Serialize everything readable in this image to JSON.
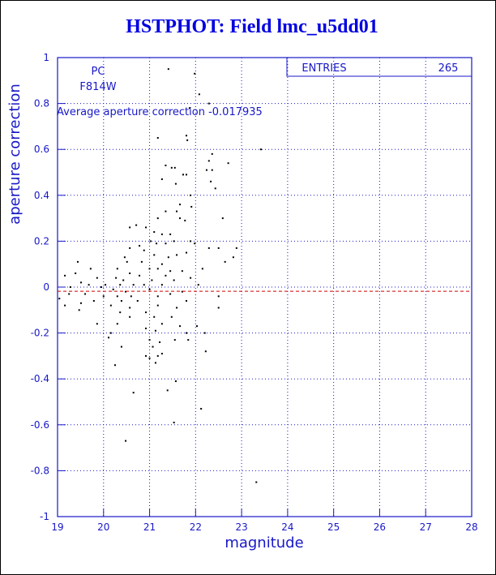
{
  "chart_data": {
    "type": "scatter",
    "title": "HSTPHOT: Field lmc_u5dd01",
    "xlabel": "magnitude",
    "ylabel": "aperture correction",
    "annotations": [
      "PC",
      "F814W"
    ],
    "average_label": "Average aperture correction",
    "average": -0.017935,
    "average_color": "#d00000",
    "stats": {
      "label": "ENTRIES",
      "value": 265
    },
    "xlim": [
      19,
      28
    ],
    "ylim": [
      -1,
      1
    ],
    "xticks": [
      19,
      20,
      21,
      22,
      23,
      24,
      25,
      26,
      27,
      28
    ],
    "yticks": [
      -1,
      -0.8,
      -0.6,
      -0.4,
      -0.2,
      0,
      0.2,
      0.4,
      0.6,
      0.8,
      1
    ],
    "grid": true,
    "axis_color": "#1818c8",
    "series": [
      {
        "color": "#000000",
        "x": [
          21.41,
          21.98,
          22.08,
          22.29,
          21.87,
          23.42,
          21.18,
          21.8,
          21.82,
          22.36,
          22.29,
          22.71,
          21.35,
          21.48,
          21.55,
          22.24,
          22.36,
          21.73,
          21.8,
          21.27,
          21.57,
          22.33,
          22.43,
          21.89,
          21.66,
          21.91,
          21.35,
          21.59,
          22.59,
          21.18,
          21.66,
          20.71,
          20.92,
          20.57,
          21.77,
          21.1,
          21.27,
          21.45,
          21.89,
          21.02,
          21.15,
          21.35,
          21.53,
          21.98,
          20.78,
          20.57,
          20.88,
          22.29,
          22.5,
          22.89,
          21.1,
          21.41,
          21.59,
          21.8,
          20.46,
          20.51,
          20.83,
          21.27,
          22.82,
          22.64,
          19.44,
          19.72,
          20.3,
          21.0,
          21.18,
          21.45,
          21.71,
          22.15,
          20.57,
          20.78,
          21.35,
          19.16,
          19.39,
          19.86,
          20.27,
          20.43,
          21.05,
          21.53,
          21.89,
          19.51,
          19.68,
          20.04,
          20.36,
          20.65,
          20.88,
          21.27,
          22.06,
          19.28,
          19.95,
          20.21,
          20.48,
          21.0,
          21.71,
          19.25,
          19.6,
          20.0,
          20.3,
          20.6,
          21.18,
          21.45,
          19.04,
          19.79,
          20.39,
          20.74,
          21.8,
          22.5,
          19.16,
          19.51,
          20.16,
          20.57,
          21.18,
          19.47,
          20.36,
          20.92,
          21.59,
          22.5,
          20.57,
          21.1,
          21.48,
          20.3,
          19.86,
          21.27,
          21.66,
          22.03,
          20.92,
          20.16,
          21.13,
          21.8,
          22.2,
          20.11,
          21.55,
          21.0,
          21.22,
          20.39,
          21.07,
          21.84,
          20.92,
          21.27,
          21.0,
          21.18,
          22.22,
          20.25,
          21.13,
          21.57,
          20.65,
          21.39,
          22.12,
          21.53,
          20.48,
          23.32
        ],
        "values": [
          0.95,
          0.93,
          0.84,
          0.8,
          0.78,
          0.6,
          0.65,
          0.66,
          0.64,
          0.58,
          0.55,
          0.54,
          0.53,
          0.52,
          0.52,
          0.51,
          0.51,
          0.49,
          0.49,
          0.47,
          0.45,
          0.46,
          0.43,
          0.4,
          0.36,
          0.35,
          0.33,
          0.33,
          0.3,
          0.3,
          0.3,
          0.27,
          0.26,
          0.26,
          0.29,
          0.24,
          0.23,
          0.23,
          0.2,
          0.2,
          0.19,
          0.19,
          0.2,
          0.19,
          0.18,
          0.17,
          0.16,
          0.17,
          0.17,
          0.17,
          0.14,
          0.13,
          0.14,
          0.15,
          0.13,
          0.11,
          0.11,
          0.1,
          0.13,
          0.11,
          0.11,
          0.08,
          0.08,
          0.08,
          0.08,
          0.07,
          0.07,
          0.08,
          0.06,
          0.05,
          0.05,
          0.05,
          0.06,
          0.04,
          0.04,
          0.03,
          0.03,
          0.03,
          0.04,
          0.02,
          0.01,
          0.01,
          0.01,
          0.01,
          0.01,
          0.01,
          0.01,
          0.0,
          0.0,
          -0.01,
          -0.02,
          -0.01,
          -0.02,
          -0.03,
          -0.03,
          -0.04,
          -0.04,
          -0.04,
          -0.04,
          -0.03,
          -0.05,
          -0.06,
          -0.06,
          -0.06,
          -0.06,
          -0.04,
          -0.08,
          -0.07,
          -0.08,
          -0.09,
          -0.08,
          -0.1,
          -0.11,
          -0.11,
          -0.09,
          -0.09,
          -0.13,
          -0.13,
          -0.13,
          -0.16,
          -0.16,
          -0.16,
          -0.17,
          -0.17,
          -0.18,
          -0.2,
          -0.19,
          -0.2,
          -0.2,
          -0.22,
          -0.23,
          -0.23,
          -0.24,
          -0.26,
          -0.26,
          -0.23,
          -0.3,
          -0.29,
          -0.31,
          -0.3,
          -0.28,
          -0.34,
          -0.33,
          -0.41,
          -0.46,
          -0.45,
          -0.53,
          -0.59,
          -0.67,
          -0.85
        ]
      }
    ]
  }
}
